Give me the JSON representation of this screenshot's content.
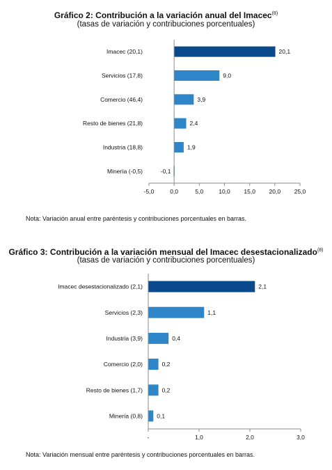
{
  "chart_data": [
    {
      "type": "bar",
      "orientation": "horizontal",
      "title": "Gráfico 2: Contribución a la variación anual del Imacec",
      "title_superscript": "(8)",
      "subtitle": "(tasas de variación y contribuciones porcentuales)",
      "categories": [
        "Imacec (20,1)",
        "Servicios (17,8)",
        "Comercio (46,4)",
        "Resto de bienes (21,8)",
        "Industria (18,8)",
        "Minería (-0,5)"
      ],
      "values": [
        20.1,
        9.0,
        3.9,
        2.4,
        1.9,
        -0.1
      ],
      "data_labels": [
        "20,1",
        "9,0",
        "3,9",
        "2,4",
        "1,9",
        "-0,1"
      ],
      "xlim": [
        -5,
        25
      ],
      "x_ticks": [
        -5,
        0,
        5,
        10,
        15,
        20,
        25
      ],
      "x_tick_labels": [
        "-5,0",
        "0,0",
        "5,0",
        "10,0",
        "15,0",
        "20,0",
        "25,0"
      ],
      "highlight_color": "#0a4a8c",
      "bar_color": "#2e86c8",
      "grid": false,
      "note": "Nota: Variación anual entre paréntesis y contribuciones porcentuales en barras."
    },
    {
      "type": "bar",
      "orientation": "horizontal",
      "title": "Gráfico 3: Contribución a la variación mensual del Imacec desestacionalizado",
      "title_superscript": "(8)",
      "subtitle": "(tasas de variación y contribuciones porcentuales)",
      "categories": [
        "Imacec desestacionalizado (2,1)",
        "Servicios (2,3)",
        "Industria (3,9)",
        "Comercio (2,0)",
        "Resto de bienes (1,7)",
        "Minería (0,8)"
      ],
      "values": [
        2.1,
        1.1,
        0.4,
        0.2,
        0.2,
        0.1
      ],
      "data_labels": [
        "2,1",
        "1,1",
        "0,4",
        "0,2",
        "0,2",
        "0,1"
      ],
      "xlim": [
        0,
        3
      ],
      "x_ticks": [
        0,
        1,
        2,
        3
      ],
      "x_tick_labels": [
        "-",
        "1,0",
        "2,0",
        "3,0"
      ],
      "highlight_color": "#0a4a8c",
      "bar_color": "#2e86c8",
      "grid": false,
      "note": "Nota: Variación mensual entre paréntesis y contribuciones porcentuales en barras."
    }
  ]
}
